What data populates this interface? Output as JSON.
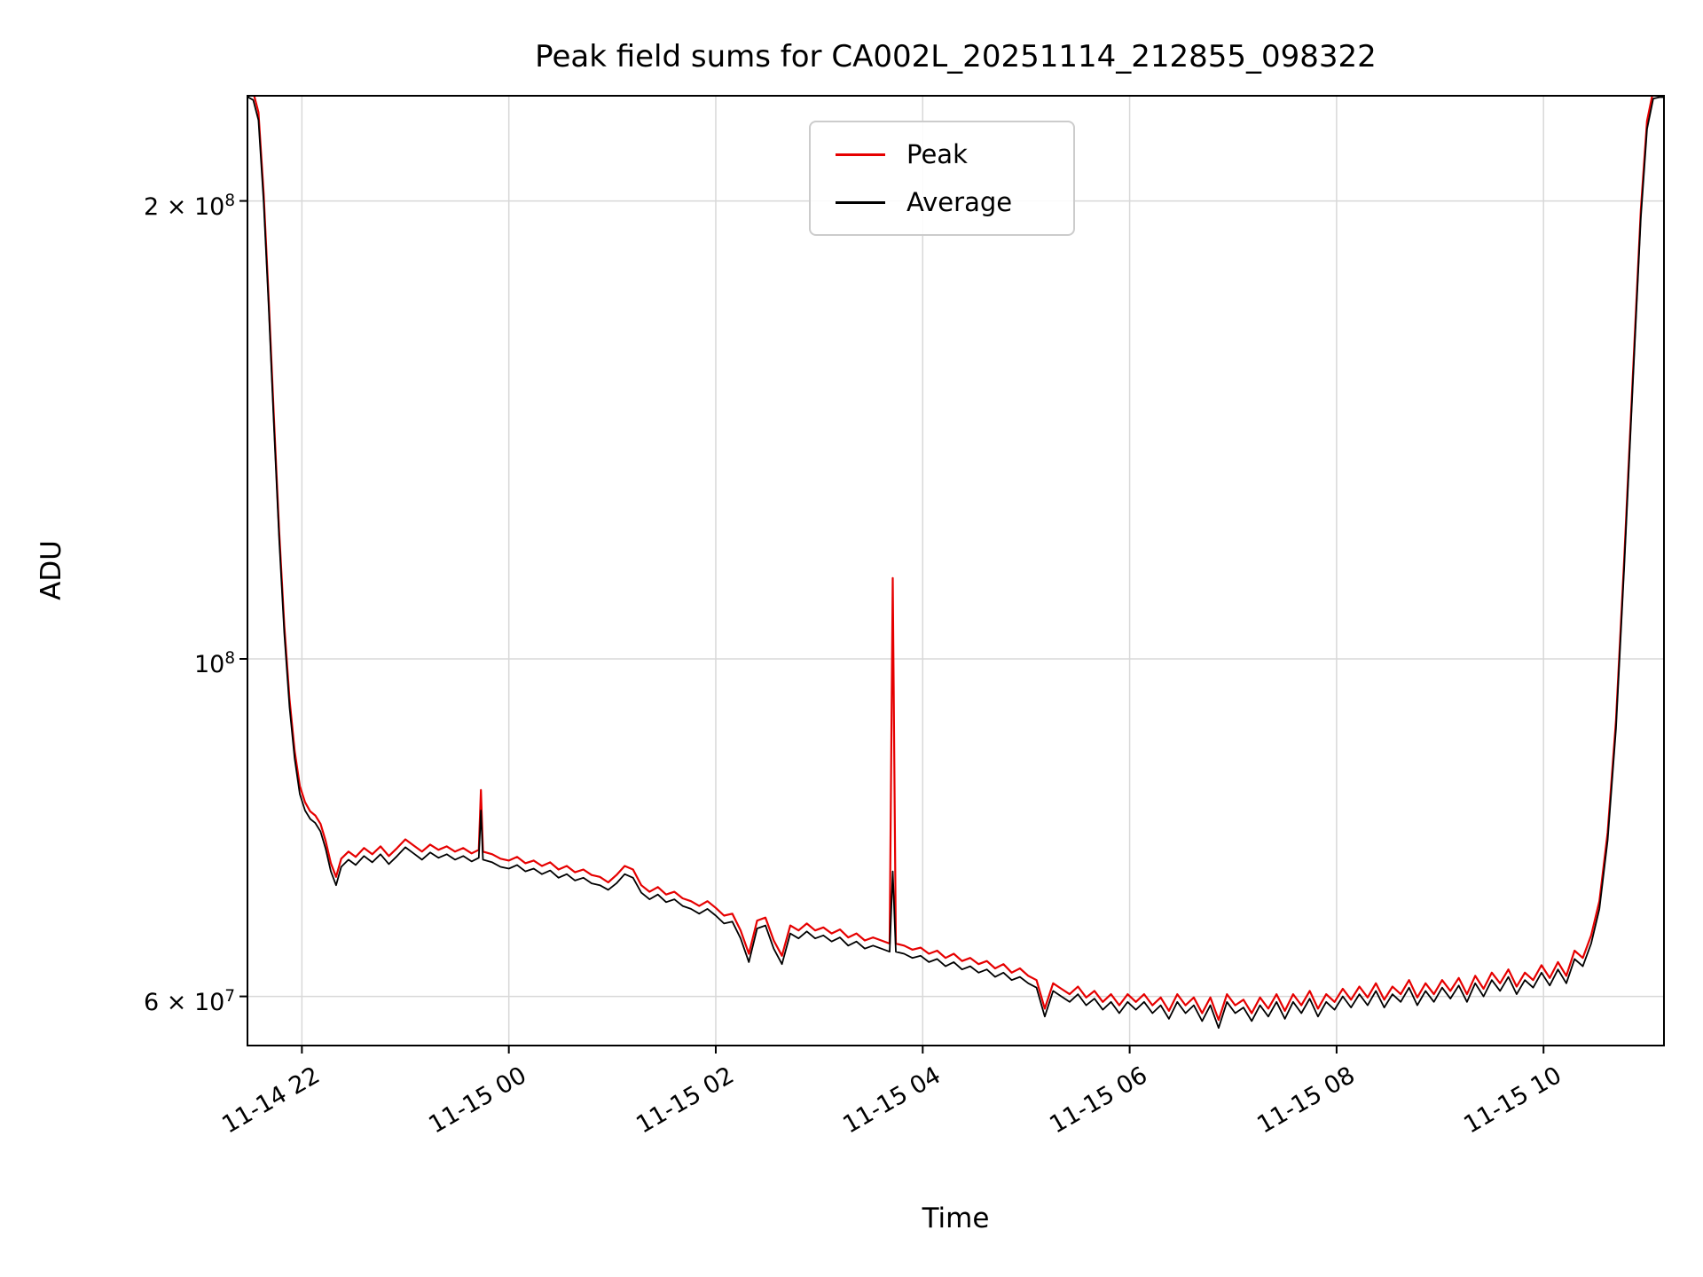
{
  "legend": {
    "items": [
      {
        "label": "Peak"
      },
      {
        "label": "Average"
      }
    ]
  },
  "chart_data": {
    "type": "line",
    "title": "Peak field sums for CA002L_20251114_212855_098322",
    "xlabel": "Time",
    "ylabel": "ADU",
    "yscale": "log",
    "grid": true,
    "grid_color": "#d8d8d8",
    "legend_position": "upper center",
    "ylim": [
      55700000,
      234500000
    ],
    "xlim": [
      21.474,
      35.164
    ],
    "x_axis_note": "hours on 11-14/11-15 timeline as labeled on ticks",
    "yticks": [
      {
        "value": 60000000,
        "label": "6 × 10^7"
      },
      {
        "value": 100000000,
        "label": "10^8"
      },
      {
        "value": 200000000,
        "label": "2 × 10^8"
      }
    ],
    "xticks": [
      {
        "value": 22,
        "label": "11-14 22"
      },
      {
        "value": 24,
        "label": "11-15 00"
      },
      {
        "value": 26,
        "label": "11-15 02"
      },
      {
        "value": 28,
        "label": "11-15 04"
      },
      {
        "value": 30,
        "label": "11-15 06"
      },
      {
        "value": 32,
        "label": "11-15 08"
      },
      {
        "value": 34,
        "label": "11-15 10"
      }
    ],
    "value_scale": 10000000,
    "x": [
      21.48,
      21.53,
      21.58,
      21.63,
      21.68,
      21.73,
      21.78,
      21.83,
      21.88,
      21.93,
      21.98,
      22.03,
      22.08,
      22.13,
      22.18,
      22.23,
      22.28,
      22.33,
      22.38,
      22.45,
      22.52,
      22.6,
      22.68,
      22.76,
      22.84,
      22.92,
      23.0,
      23.08,
      23.16,
      23.24,
      23.32,
      23.4,
      23.48,
      23.56,
      23.64,
      23.71,
      23.73,
      23.75,
      23.84,
      23.92,
      24.0,
      24.08,
      24.16,
      24.24,
      24.32,
      24.4,
      24.48,
      24.56,
      24.64,
      24.72,
      24.8,
      24.88,
      24.96,
      25.04,
      25.12,
      25.2,
      25.28,
      25.36,
      25.44,
      25.52,
      25.6,
      25.68,
      25.76,
      25.84,
      25.92,
      26.0,
      26.08,
      26.16,
      26.24,
      26.32,
      26.4,
      26.48,
      26.56,
      26.64,
      26.72,
      26.8,
      26.88,
      26.96,
      27.04,
      27.12,
      27.2,
      27.28,
      27.36,
      27.44,
      27.52,
      27.6,
      27.68,
      27.71,
      27.74,
      27.82,
      27.9,
      27.98,
      28.06,
      28.14,
      28.22,
      28.3,
      28.38,
      28.46,
      28.54,
      28.62,
      28.7,
      28.78,
      28.86,
      28.94,
      29.02,
      29.1,
      29.18,
      29.26,
      29.34,
      29.42,
      29.5,
      29.58,
      29.66,
      29.74,
      29.82,
      29.9,
      29.98,
      30.06,
      30.14,
      30.22,
      30.3,
      30.38,
      30.46,
      30.54,
      30.62,
      30.7,
      30.78,
      30.86,
      30.94,
      31.02,
      31.1,
      31.18,
      31.26,
      31.34,
      31.42,
      31.5,
      31.58,
      31.66,
      31.74,
      31.82,
      31.9,
      31.98,
      32.06,
      32.14,
      32.22,
      32.3,
      32.38,
      32.46,
      32.54,
      32.62,
      32.7,
      32.78,
      32.86,
      32.94,
      33.02,
      33.1,
      33.18,
      33.26,
      33.34,
      33.42,
      33.5,
      33.58,
      33.66,
      33.74,
      33.82,
      33.9,
      33.98,
      34.06,
      34.14,
      34.22,
      34.3,
      34.38,
      34.46,
      34.54,
      34.62,
      34.7,
      34.78,
      34.86,
      34.94,
      35.0,
      35.06,
      35.12,
      35.16
    ],
    "series": [
      {
        "name": "Peak",
        "color": "#e60000",
        "values": [
          23.68,
          23.58,
          22.87,
          20.24,
          17.2,
          14.37,
          12.14,
          10.52,
          9.41,
          8.7,
          8.25,
          8.05,
          7.94,
          7.89,
          7.79,
          7.59,
          7.34,
          7.19,
          7.39,
          7.47,
          7.41,
          7.51,
          7.44,
          7.53,
          7.42,
          7.51,
          7.61,
          7.54,
          7.47,
          7.55,
          7.49,
          7.53,
          7.47,
          7.51,
          7.45,
          7.49,
          8.2,
          7.47,
          7.44,
          7.39,
          7.37,
          7.41,
          7.34,
          7.37,
          7.31,
          7.35,
          7.27,
          7.31,
          7.24,
          7.27,
          7.21,
          7.19,
          7.13,
          7.21,
          7.31,
          7.27,
          7.1,
          7.03,
          7.08,
          7.0,
          7.03,
          6.96,
          6.93,
          6.88,
          6.93,
          6.86,
          6.78,
          6.8,
          6.63,
          6.4,
          6.73,
          6.76,
          6.53,
          6.38,
          6.68,
          6.63,
          6.7,
          6.63,
          6.66,
          6.6,
          6.64,
          6.56,
          6.6,
          6.53,
          6.56,
          6.53,
          6.5,
          11.3,
          6.5,
          6.48,
          6.44,
          6.46,
          6.4,
          6.43,
          6.36,
          6.4,
          6.33,
          6.36,
          6.3,
          6.33,
          6.26,
          6.3,
          6.22,
          6.26,
          6.19,
          6.15,
          5.89,
          6.12,
          6.07,
          6.02,
          6.09,
          5.99,
          6.05,
          5.95,
          6.02,
          5.92,
          6.02,
          5.95,
          6.02,
          5.92,
          5.99,
          5.87,
          6.02,
          5.92,
          5.99,
          5.85,
          5.99,
          5.79,
          6.02,
          5.92,
          5.97,
          5.85,
          5.99,
          5.89,
          6.02,
          5.87,
          6.02,
          5.92,
          6.05,
          5.89,
          6.02,
          5.95,
          6.07,
          5.97,
          6.09,
          5.99,
          6.12,
          5.97,
          6.09,
          6.02,
          6.15,
          5.99,
          6.12,
          6.02,
          6.15,
          6.05,
          6.17,
          6.02,
          6.19,
          6.07,
          6.22,
          6.12,
          6.25,
          6.09,
          6.22,
          6.15,
          6.29,
          6.17,
          6.32,
          6.19,
          6.43,
          6.36,
          6.58,
          6.93,
          7.69,
          9.11,
          11.64,
          15.18,
          19.73,
          22.57,
          23.63,
          23.68,
          23.68
        ]
      },
      {
        "name": "Average",
        "color": "#000000",
        "values": [
          23.4,
          23.3,
          22.6,
          20.0,
          17.0,
          14.2,
          12.0,
          10.4,
          9.3,
          8.6,
          8.15,
          7.95,
          7.85,
          7.8,
          7.7,
          7.5,
          7.25,
          7.1,
          7.3,
          7.38,
          7.32,
          7.42,
          7.35,
          7.44,
          7.33,
          7.42,
          7.52,
          7.45,
          7.38,
          7.46,
          7.4,
          7.44,
          7.38,
          7.42,
          7.36,
          7.4,
          7.95,
          7.38,
          7.35,
          7.3,
          7.28,
          7.32,
          7.25,
          7.28,
          7.22,
          7.26,
          7.18,
          7.22,
          7.15,
          7.18,
          7.12,
          7.1,
          7.05,
          7.12,
          7.22,
          7.18,
          7.02,
          6.95,
          7.0,
          6.92,
          6.95,
          6.88,
          6.85,
          6.8,
          6.85,
          6.78,
          6.7,
          6.72,
          6.55,
          6.32,
          6.65,
          6.68,
          6.45,
          6.3,
          6.6,
          6.55,
          6.62,
          6.55,
          6.58,
          6.52,
          6.56,
          6.48,
          6.52,
          6.45,
          6.48,
          6.45,
          6.42,
          7.25,
          6.42,
          6.4,
          6.36,
          6.38,
          6.32,
          6.35,
          6.28,
          6.32,
          6.25,
          6.28,
          6.22,
          6.25,
          6.18,
          6.22,
          6.15,
          6.18,
          6.12,
          6.08,
          5.82,
          6.05,
          6.0,
          5.95,
          6.02,
          5.92,
          5.98,
          5.88,
          5.95,
          5.85,
          5.95,
          5.88,
          5.95,
          5.85,
          5.92,
          5.8,
          5.95,
          5.85,
          5.92,
          5.78,
          5.92,
          5.72,
          5.95,
          5.85,
          5.9,
          5.78,
          5.92,
          5.82,
          5.95,
          5.8,
          5.95,
          5.85,
          5.98,
          5.82,
          5.95,
          5.88,
          6.0,
          5.9,
          6.02,
          5.92,
          6.05,
          5.9,
          6.02,
          5.95,
          6.08,
          5.92,
          6.05,
          5.95,
          6.08,
          5.98,
          6.1,
          5.95,
          6.12,
          6.0,
          6.15,
          6.05,
          6.18,
          6.02,
          6.15,
          6.08,
          6.22,
          6.1,
          6.25,
          6.12,
          6.35,
          6.28,
          6.5,
          6.85,
          7.6,
          9.0,
          11.5,
          15.0,
          19.5,
          22.3,
          23.35,
          23.4,
          23.4
        ]
      }
    ]
  }
}
